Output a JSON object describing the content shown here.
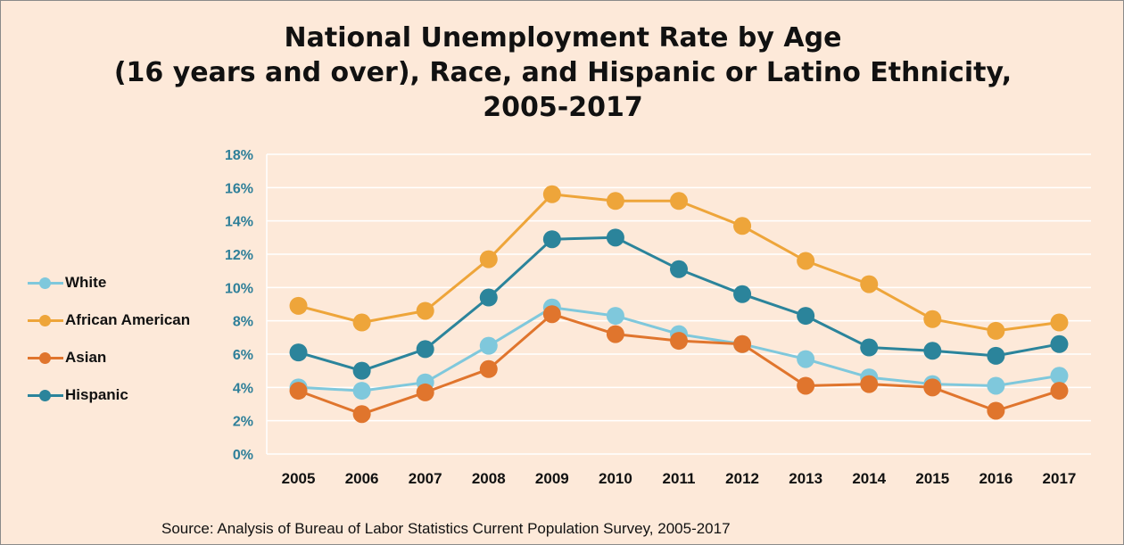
{
  "chart_data": {
    "type": "line",
    "title_lines": [
      "National Unemployment Rate by Age",
      "(16 years and over), Race, and Hispanic or Latino Ethnicity,",
      "2005-2017"
    ],
    "source": "Source: Analysis of Bureau  of Labor Statistics Current Population Survey, 2005-2017",
    "x": [
      "2005",
      "2006",
      "2007",
      "2008",
      "2009",
      "2010",
      "2011",
      "2012",
      "2013",
      "2014",
      "2015",
      "2016",
      "2017"
    ],
    "y_ticks": [
      "0%",
      "2%",
      "4%",
      "6%",
      "8%",
      "10%",
      "12%",
      "14%",
      "16%",
      "18%"
    ],
    "ylim": [
      0,
      18
    ],
    "grid": true,
    "legend_position": "left",
    "series": [
      {
        "name": "White",
        "color": "#7fc8dc",
        "values": [
          4.0,
          3.8,
          4.3,
          6.5,
          8.8,
          8.3,
          7.2,
          6.6,
          5.7,
          4.6,
          4.2,
          4.1,
          4.7
        ]
      },
      {
        "name": "African American",
        "color": "#eea53a",
        "values": [
          8.9,
          7.9,
          8.6,
          11.7,
          15.6,
          15.2,
          15.2,
          13.7,
          11.6,
          10.2,
          8.1,
          7.4,
          7.9
        ]
      },
      {
        "name": "Asian",
        "color": "#e0752d",
        "values": [
          3.8,
          2.4,
          3.7,
          5.1,
          8.4,
          7.2,
          6.8,
          6.6,
          4.1,
          4.2,
          4.0,
          2.6,
          3.8
        ]
      },
      {
        "name": "Hispanic",
        "color": "#2b849b",
        "values": [
          6.1,
          5.0,
          6.3,
          9.4,
          12.9,
          13.0,
          11.1,
          9.6,
          8.3,
          6.4,
          6.2,
          5.9,
          6.6
        ]
      }
    ],
    "styles": {
      "background": "#fde9d9",
      "gridline": "#ffffff",
      "y_tick_color": "#2e7f99",
      "x_tick_color": "#111111"
    }
  }
}
